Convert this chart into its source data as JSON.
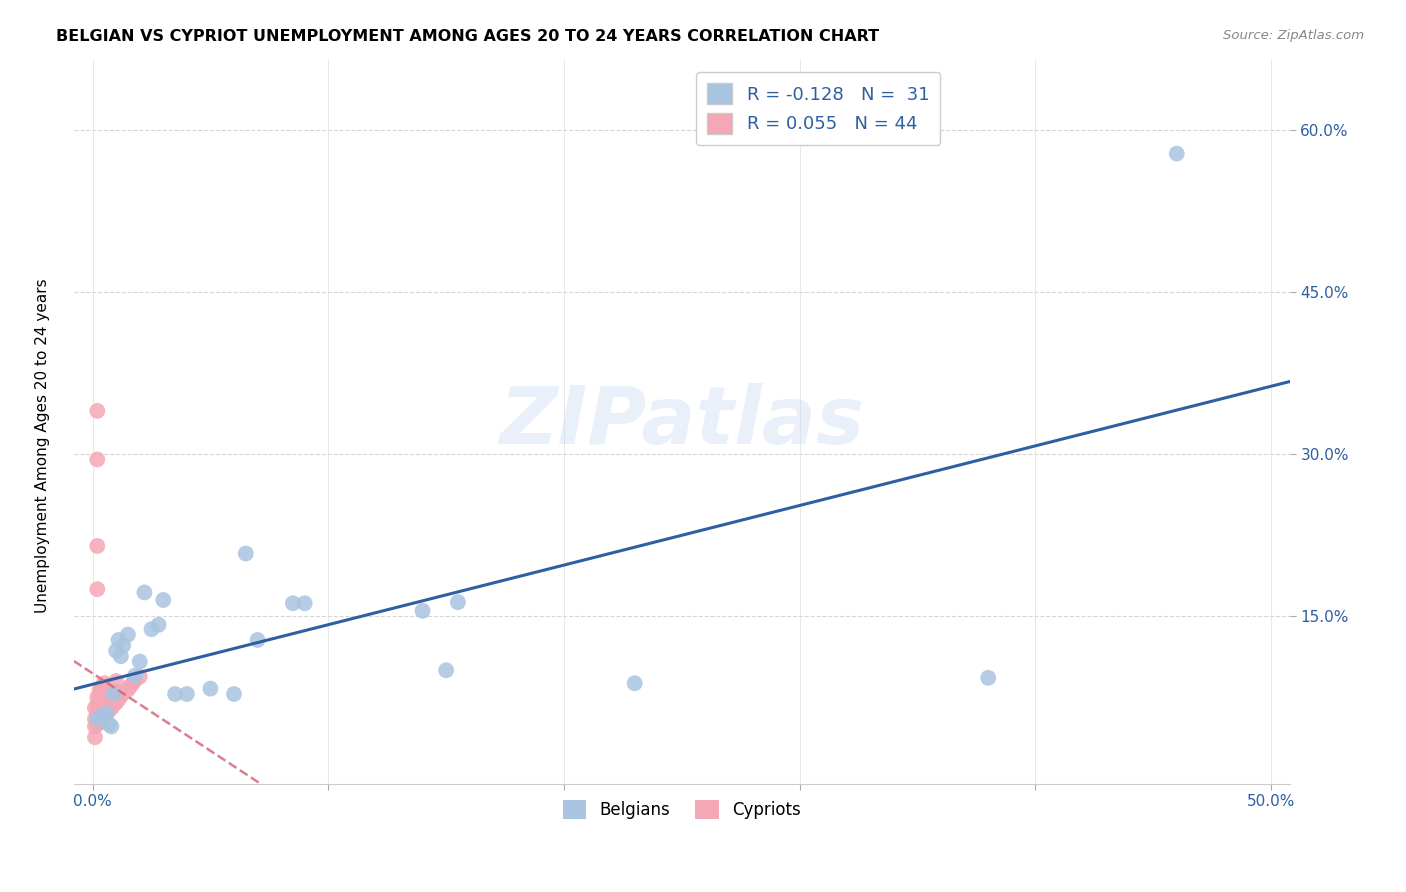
{
  "title": "BELGIAN VS CYPRIOT UNEMPLOYMENT AMONG AGES 20 TO 24 YEARS CORRELATION CHART",
  "source": "Source: ZipAtlas.com",
  "ylabel": "Unemployment Among Ages 20 to 24 years",
  "xlim": [
    -0.008,
    0.508
  ],
  "ylim": [
    -0.005,
    0.665
  ],
  "xticks": [
    0.0,
    0.1,
    0.2,
    0.3,
    0.4,
    0.5
  ],
  "xticklabels_show": [
    "0.0%",
    "",
    "",
    "",
    "",
    "50.0%"
  ],
  "yticks": [
    0.15,
    0.3,
    0.45,
    0.6
  ],
  "yticklabels": [
    "15.0%",
    "30.0%",
    "45.0%",
    "60.0%"
  ],
  "watermark_text": "ZIPatlas",
  "belgian_color": "#a8c4e0",
  "cypriot_color": "#f4a7b5",
  "belgian_line_color": "#2e5fa3",
  "cypriot_line_color": "#d4687a",
  "belgian_R": -0.128,
  "belgian_N": 31,
  "cypriot_R": 0.055,
  "cypriot_N": 44,
  "belgian_x": [
    0.002,
    0.004,
    0.006,
    0.007,
    0.008,
    0.009,
    0.01,
    0.011,
    0.012,
    0.013,
    0.015,
    0.018,
    0.02,
    0.022,
    0.025,
    0.028,
    0.03,
    0.035,
    0.04,
    0.05,
    0.06,
    0.065,
    0.07,
    0.085,
    0.09,
    0.14,
    0.15,
    0.155,
    0.23,
    0.38,
    0.46
  ],
  "belgian_y": [
    0.055,
    0.058,
    0.06,
    0.05,
    0.048,
    0.078,
    0.118,
    0.128,
    0.113,
    0.123,
    0.133,
    0.095,
    0.108,
    0.172,
    0.138,
    0.142,
    0.165,
    0.078,
    0.078,
    0.083,
    0.078,
    0.208,
    0.128,
    0.162,
    0.162,
    0.155,
    0.1,
    0.163,
    0.088,
    0.093,
    0.578
  ],
  "cypriot_x": [
    0.001,
    0.001,
    0.001,
    0.001,
    0.002,
    0.002,
    0.002,
    0.002,
    0.003,
    0.003,
    0.003,
    0.003,
    0.004,
    0.004,
    0.004,
    0.004,
    0.005,
    0.005,
    0.005,
    0.005,
    0.006,
    0.006,
    0.006,
    0.007,
    0.007,
    0.008,
    0.008,
    0.009,
    0.009,
    0.01,
    0.01,
    0.01,
    0.011,
    0.012,
    0.013,
    0.015,
    0.016,
    0.017,
    0.018,
    0.02,
    0.002,
    0.002,
    0.002,
    0.002
  ],
  "cypriot_y": [
    0.038,
    0.048,
    0.055,
    0.065,
    0.05,
    0.06,
    0.068,
    0.075,
    0.052,
    0.062,
    0.072,
    0.082,
    0.055,
    0.065,
    0.075,
    0.085,
    0.058,
    0.068,
    0.078,
    0.088,
    0.06,
    0.07,
    0.08,
    0.063,
    0.073,
    0.065,
    0.075,
    0.068,
    0.078,
    0.07,
    0.08,
    0.09,
    0.073,
    0.076,
    0.079,
    0.082,
    0.085,
    0.088,
    0.091,
    0.094,
    0.34,
    0.295,
    0.215,
    0.175
  ]
}
